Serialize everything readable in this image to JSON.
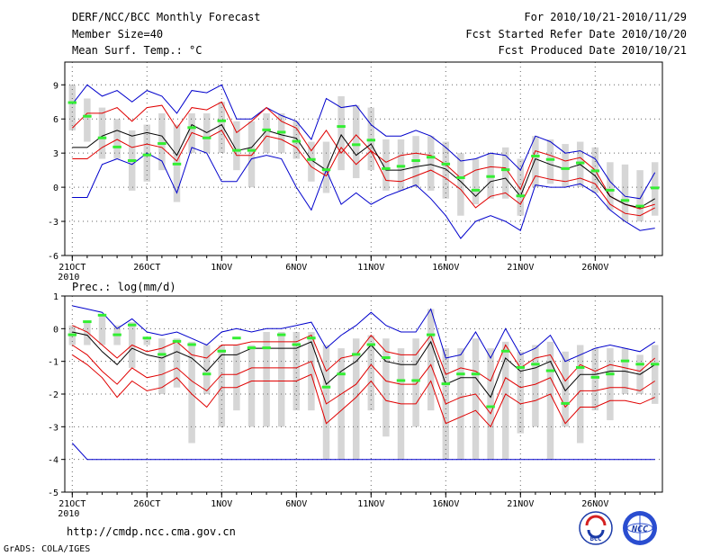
{
  "header": {
    "title": "DERF/NCC/BCC Monthly Forecast",
    "member_size": "Member Size=40",
    "variable": "Mean Surf. Temp.: °C",
    "forecast_period": "For 2010/10/21-2010/11/29",
    "started_refer": "Fcst Started Refer Date 2010/10/20",
    "produced_date": "Fcst Produced Date 2010/10/21"
  },
  "footer": {
    "url": "http://cmdp.ncc.cma.gov.cn",
    "grads_credit": "GrADS: COLA/IGES",
    "logo_bcc": "BCC",
    "logo_ncc": "NCC"
  },
  "colors": {
    "envelope": "#0000cc",
    "spread": "#e00000",
    "mean": "#000000",
    "box": "#d6d6d6",
    "median": "#33ee33",
    "grid": "#666666"
  },
  "chart_data": [
    {
      "type": "box",
      "title": "Mean Surf. Temp.: °C",
      "x_tick_labels": [
        "21OCT",
        "26OCT",
        "1NOV",
        "6NOV",
        "11NOV",
        "16NOV",
        "21NOV",
        "26NOV"
      ],
      "x_tick_days": [
        1,
        6,
        11,
        16,
        21,
        26,
        31,
        36
      ],
      "year_label": "2010",
      "xlim": [
        0.5,
        40.5
      ],
      "ylim": [
        -6,
        11
      ],
      "yticks": [
        -6,
        -3,
        0,
        3,
        6,
        9
      ],
      "x": [
        1,
        2,
        3,
        4,
        5,
        6,
        7,
        8,
        9,
        10,
        11,
        12,
        13,
        14,
        15,
        16,
        17,
        18,
        19,
        20,
        21,
        22,
        23,
        24,
        25,
        26,
        27,
        28,
        29,
        30,
        31,
        32,
        33,
        34,
        35,
        36,
        37,
        38,
        39,
        40
      ],
      "series": [
        {
          "name": "max",
          "values": [
            -0.9,
            -0.9,
            2.0,
            2.5,
            2.0,
            3.0,
            2.3,
            -0.5,
            3.5,
            3.0,
            0.5,
            0.5,
            2.5,
            2.8,
            2.5,
            0.0,
            -2.0,
            1.5,
            -1.5,
            -0.5,
            -1.5,
            -0.8,
            -0.3,
            0.2,
            -1.0,
            -2.5,
            -4.5,
            -3.0,
            -2.5,
            -3.0,
            -3.8,
            0.2,
            0.0,
            0.0,
            0.3,
            -0.5,
            -2.0,
            -3.0,
            -3.8,
            -3.6
          ]
        },
        {
          "name": "upper",
          "values": [
            5.2,
            6.5,
            6.5,
            7.0,
            5.8,
            7.0,
            7.2,
            5.2,
            7.0,
            6.8,
            7.5,
            4.8,
            5.8,
            7.0,
            5.8,
            5.2,
            3.2,
            5.0,
            3.0,
            4.6,
            3.2,
            2.2,
            2.8,
            3.0,
            2.8,
            2.0,
            0.8,
            1.5,
            1.8,
            1.7,
            -0.2,
            3.2,
            2.8,
            2.3,
            2.6,
            1.5,
            -0.8,
            -1.5,
            -1.9,
            -1.5
          ]
        },
        {
          "name": "mean",
          "values": [
            3.5,
            3.5,
            4.5,
            5.0,
            4.5,
            4.8,
            4.5,
            2.8,
            5.5,
            4.8,
            5.5,
            3.2,
            3.5,
            5.0,
            4.6,
            4.3,
            2.4,
            1.5,
            4.6,
            2.8,
            3.8,
            1.5,
            1.5,
            1.8,
            2.0,
            1.6,
            0.5,
            -0.8,
            0.5,
            0.8,
            -0.8,
            2.5,
            2.0,
            1.6,
            2.0,
            1.0,
            -0.8,
            -1.5,
            -1.8,
            -1.0
          ]
        },
        {
          "name": "lower",
          "values": [
            2.5,
            2.5,
            3.5,
            4.2,
            3.5,
            3.8,
            3.5,
            2.3,
            4.8,
            4.3,
            5.0,
            2.8,
            2.8,
            4.5,
            4.2,
            3.5,
            1.8,
            1.0,
            3.5,
            2.0,
            3.2,
            0.6,
            0.5,
            1.0,
            1.5,
            0.8,
            -0.2,
            -1.8,
            -0.8,
            -0.5,
            -1.5,
            1.0,
            0.7,
            0.5,
            0.8,
            0.3,
            -1.5,
            -2.3,
            -2.5,
            -1.8
          ]
        },
        {
          "name": "min",
          "values": [
            7.3,
            9.0,
            8.0,
            8.5,
            7.5,
            8.5,
            8.0,
            6.5,
            8.5,
            8.3,
            9.0,
            6.0,
            6.0,
            7.0,
            6.3,
            5.8,
            4.2,
            7.8,
            7.0,
            7.2,
            5.5,
            4.5,
            4.5,
            5.0,
            4.5,
            3.5,
            2.3,
            2.5,
            3.0,
            2.8,
            1.5,
            4.5,
            4.0,
            3.0,
            3.2,
            2.5,
            0.5,
            -0.8,
            -1.0,
            1.3
          ]
        },
        {
          "name": "median",
          "values": [
            7.4,
            6.2,
            4.3,
            3.5,
            2.3,
            2.8,
            3.8,
            2.0,
            5.2,
            4.3,
            5.8,
            3.2,
            3.2,
            5.0,
            4.8,
            4.0,
            2.4,
            1.5,
            5.3,
            3.7,
            4.1,
            1.6,
            1.8,
            2.3,
            2.6,
            2.0,
            0.8,
            -0.3,
            0.9,
            1.5,
            -0.8,
            2.7,
            2.4,
            1.6,
            2.1,
            1.4,
            -0.3,
            -1.2,
            -1.7,
            -0.1
          ]
        },
        {
          "name": "box_top",
          "values": [
            9.0,
            7.8,
            7.0,
            6.0,
            5.0,
            5.5,
            6.5,
            5.5,
            6.5,
            6.5,
            7.5,
            5.8,
            5.8,
            6.5,
            6.5,
            5.8,
            4.0,
            4.0,
            8.0,
            7.2,
            7.0,
            4.2,
            4.2,
            4.5,
            4.5,
            4.0,
            3.0,
            2.5,
            3.0,
            3.5,
            2.5,
            4.5,
            4.2,
            3.8,
            4.0,
            3.5,
            2.2,
            2.0,
            1.5,
            2.2
          ]
        },
        {
          "name": "box_bottom",
          "values": [
            5.0,
            4.0,
            2.5,
            2.5,
            -0.3,
            0.5,
            1.5,
            -1.3,
            3.0,
            3.0,
            3.0,
            1.5,
            0.0,
            3.0,
            3.0,
            2.5,
            0.5,
            -0.5,
            1.5,
            0.8,
            1.5,
            -0.3,
            -0.3,
            0.0,
            -0.3,
            -1.0,
            -2.5,
            -1.5,
            -1.0,
            -1.0,
            -2.5,
            0.0,
            0.3,
            0.0,
            0.0,
            -0.5,
            -2.0,
            -3.0,
            -3.0,
            -2.5
          ]
        }
      ]
    },
    {
      "type": "box",
      "title": "Prec.: log(mm/d)",
      "x_tick_labels": [
        "21OCT",
        "26OCT",
        "1NOV",
        "6NOV",
        "11NOV",
        "16NOV",
        "21NOV",
        "26NOV"
      ],
      "x_tick_days": [
        1,
        6,
        11,
        16,
        21,
        26,
        31,
        36
      ],
      "year_label": "2010",
      "xlim": [
        0.5,
        40.5
      ],
      "ylim": [
        -5,
        1
      ],
      "yticks": [
        -5,
        -4,
        -3,
        -2,
        -1,
        0,
        1
      ],
      "x": [
        1,
        2,
        3,
        4,
        5,
        6,
        7,
        8,
        9,
        10,
        11,
        12,
        13,
        14,
        15,
        16,
        17,
        18,
        19,
        20,
        21,
        22,
        23,
        24,
        25,
        26,
        27,
        28,
        29,
        30,
        31,
        32,
        33,
        34,
        35,
        36,
        37,
        38,
        39,
        40
      ],
      "series": [
        {
          "name": "max",
          "values": [
            0.7,
            0.6,
            0.5,
            0.0,
            0.3,
            -0.1,
            -0.2,
            -0.1,
            -0.3,
            -0.5,
            -0.1,
            0.0,
            -0.1,
            0.0,
            0.0,
            0.1,
            0.2,
            -0.6,
            -0.2,
            0.1,
            0.5,
            0.1,
            -0.1,
            -0.1,
            0.6,
            -0.9,
            -0.8,
            -0.1,
            -0.9,
            0.0,
            -0.8,
            -0.6,
            -0.2,
            -1.0,
            -0.8,
            -0.6,
            -0.5,
            -0.6,
            -0.7,
            -0.4
          ]
        },
        {
          "name": "upper",
          "values": [
            0.1,
            -0.1,
            -0.5,
            -0.9,
            -0.5,
            -0.7,
            -0.6,
            -0.4,
            -0.8,
            -0.9,
            -0.5,
            -0.5,
            -0.4,
            -0.4,
            -0.4,
            -0.4,
            -0.2,
            -1.3,
            -0.9,
            -0.8,
            -0.2,
            -0.7,
            -0.8,
            -0.8,
            -0.2,
            -1.4,
            -1.2,
            -1.3,
            -1.6,
            -0.5,
            -1.2,
            -0.9,
            -0.8,
            -1.6,
            -1.1,
            -1.3,
            -1.1,
            -1.2,
            -1.3,
            -0.9
          ]
        },
        {
          "name": "mean",
          "values": [
            -0.1,
            -0.2,
            -0.7,
            -1.1,
            -0.6,
            -0.8,
            -0.9,
            -0.7,
            -0.9,
            -1.3,
            -0.8,
            -0.8,
            -0.6,
            -0.6,
            -0.6,
            -0.6,
            -0.4,
            -1.7,
            -1.3,
            -1.0,
            -0.5,
            -1.0,
            -1.1,
            -1.1,
            -0.4,
            -1.7,
            -1.5,
            -1.5,
            -2.1,
            -0.9,
            -1.3,
            -1.2,
            -1.0,
            -1.9,
            -1.4,
            -1.4,
            -1.3,
            -1.3,
            -1.4,
            -1.1
          ]
        },
        {
          "name": "lower",
          "values": [
            -0.5,
            -0.8,
            -1.3,
            -1.7,
            -1.2,
            -1.5,
            -1.4,
            -1.2,
            -1.6,
            -1.9,
            -1.4,
            -1.4,
            -1.2,
            -1.2,
            -1.2,
            -1.2,
            -1.0,
            -2.3,
            -2.0,
            -1.7,
            -1.1,
            -1.6,
            -1.7,
            -1.7,
            -1.1,
            -2.3,
            -2.1,
            -2.0,
            -2.6,
            -1.5,
            -1.8,
            -1.7,
            -1.5,
            -2.4,
            -1.9,
            -1.9,
            -1.8,
            -1.8,
            -1.9,
            -1.6
          ]
        },
        {
          "name": "min",
          "values": [
            -0.8,
            -1.1,
            -1.5,
            -2.1,
            -1.6,
            -1.9,
            -1.8,
            -1.5,
            -2.0,
            -2.4,
            -1.8,
            -1.8,
            -1.6,
            -1.6,
            -1.6,
            -1.6,
            -1.4,
            -2.9,
            -2.5,
            -2.1,
            -1.6,
            -2.2,
            -2.3,
            -2.3,
            -1.6,
            -2.9,
            -2.7,
            -2.5,
            -3.0,
            -2.0,
            -2.3,
            -2.2,
            -2.0,
            -2.9,
            -2.4,
            -2.4,
            -2.2,
            -2.2,
            -2.3,
            -2.1
          ]
        },
        {
          "name": "min_floor",
          "values": [
            -3.5,
            -4.0,
            -4.0,
            -4.0,
            -4.0,
            -4.0,
            -4.0,
            -4.0,
            -4.0,
            -4.0,
            -4.0,
            -4.0,
            -4.0,
            -4.0,
            -4.0,
            -4.0,
            -4.0,
            -4.0,
            -4.0,
            -4.0,
            -4.0,
            -4.0,
            -4.0,
            -4.0,
            -4.0,
            -4.0,
            -4.0,
            -4.0,
            -4.0,
            -4.0,
            -4.0,
            -4.0,
            -4.0,
            -4.0,
            -4.0,
            -4.0,
            -4.0,
            -4.0,
            -4.0,
            -4.0
          ]
        },
        {
          "name": "median",
          "values": [
            -0.2,
            0.2,
            0.4,
            -0.2,
            0.1,
            -0.3,
            -0.8,
            -0.4,
            -0.5,
            -1.4,
            -0.7,
            -0.3,
            -0.6,
            -0.6,
            -0.2,
            -0.5,
            -0.3,
            -1.8,
            -1.4,
            -0.8,
            -0.5,
            -0.9,
            -1.6,
            -1.6,
            -0.2,
            -1.7,
            -1.4,
            -1.4,
            -2.4,
            -0.7,
            -1.2,
            -1.1,
            -1.3,
            -2.3,
            -1.2,
            -1.5,
            -1.4,
            -1.0,
            -1.1,
            -1.1
          ]
        },
        {
          "name": "box_top",
          "values": [
            0.1,
            0.2,
            0.4,
            0.1,
            0.2,
            -0.3,
            -0.3,
            -0.3,
            -0.4,
            -0.5,
            -0.5,
            -0.5,
            -0.5,
            -0.1,
            -0.1,
            -0.1,
            -0.1,
            -0.5,
            -0.6,
            -0.3,
            -0.2,
            -0.3,
            -0.6,
            -0.3,
            0.6,
            -0.6,
            -0.6,
            -0.3,
            -0.6,
            -0.4,
            -0.7,
            -0.5,
            -0.4,
            -0.7,
            -0.5,
            -0.6,
            -0.6,
            -0.6,
            -0.8,
            -0.5
          ]
        },
        {
          "name": "box_bottom",
          "values": [
            -0.5,
            -0.5,
            -0.5,
            -0.5,
            -1.2,
            -0.5,
            -2.0,
            -1.8,
            -3.5,
            -2.0,
            -3.0,
            -2.5,
            -3.0,
            -3.0,
            -3.0,
            -2.5,
            -2.5,
            -4.0,
            -4.0,
            -4.0,
            -2.5,
            -3.3,
            -4.0,
            -3.0,
            -2.5,
            -4.0,
            -4.0,
            -4.0,
            -4.0,
            -4.0,
            -3.2,
            -3.0,
            -4.0,
            -3.0,
            -3.5,
            -2.5,
            -2.8,
            -2.0,
            -2.0,
            -2.3
          ]
        }
      ]
    }
  ]
}
